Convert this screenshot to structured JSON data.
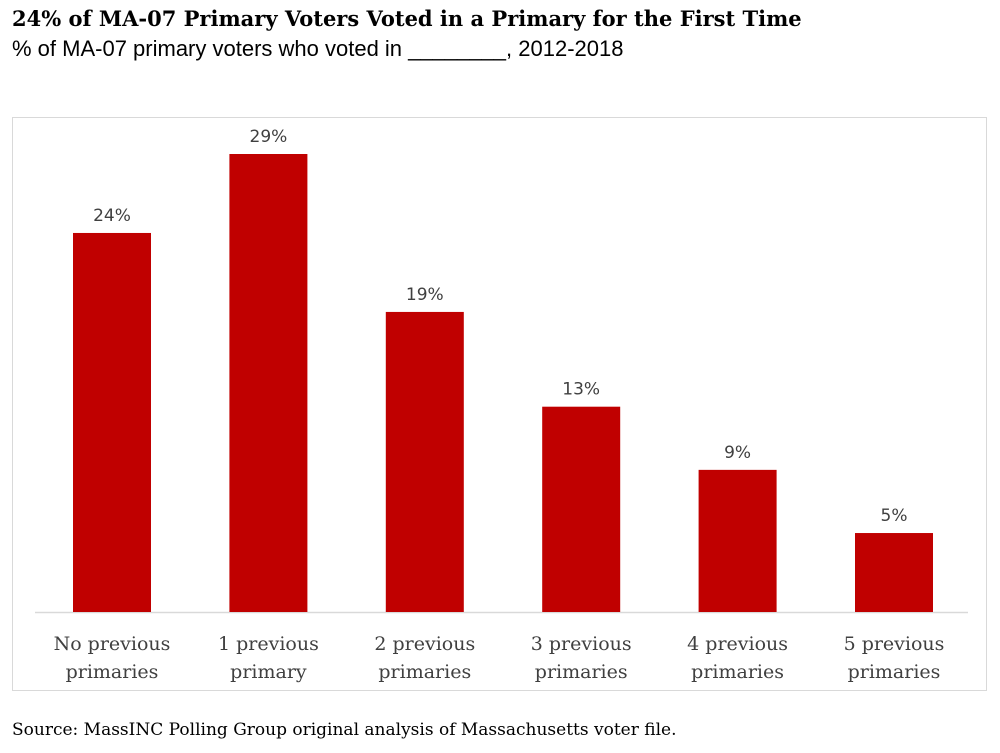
{
  "header": {
    "title": "24% of MA-07 Primary Voters Voted in a Primary for the First Time",
    "subtitle": "% of MA-07 primary voters who voted in ________, 2012-2018"
  },
  "footer": {
    "source": "Source: MassINC Polling Group original analysis of Massachusetts voter file."
  },
  "colors": {
    "bar": "#c00000",
    "axis": "#d9d9d9",
    "label_text": "#404040"
  },
  "chart_data": {
    "type": "bar",
    "categories": [
      [
        "No previous",
        "primaries"
      ],
      [
        "1 previous",
        "primary"
      ],
      [
        "2 previous",
        "primaries"
      ],
      [
        "3 previous",
        "primaries"
      ],
      [
        "4 previous",
        "primaries"
      ],
      [
        "5 previous",
        "primaries"
      ]
    ],
    "values": [
      24,
      29,
      19,
      13,
      9,
      5
    ],
    "data_labels": [
      "24%",
      "29%",
      "19%",
      "13%",
      "9%",
      "5%"
    ],
    "unit": "%",
    "ylim": [
      0,
      29
    ],
    "grid": false,
    "legend": "none"
  }
}
